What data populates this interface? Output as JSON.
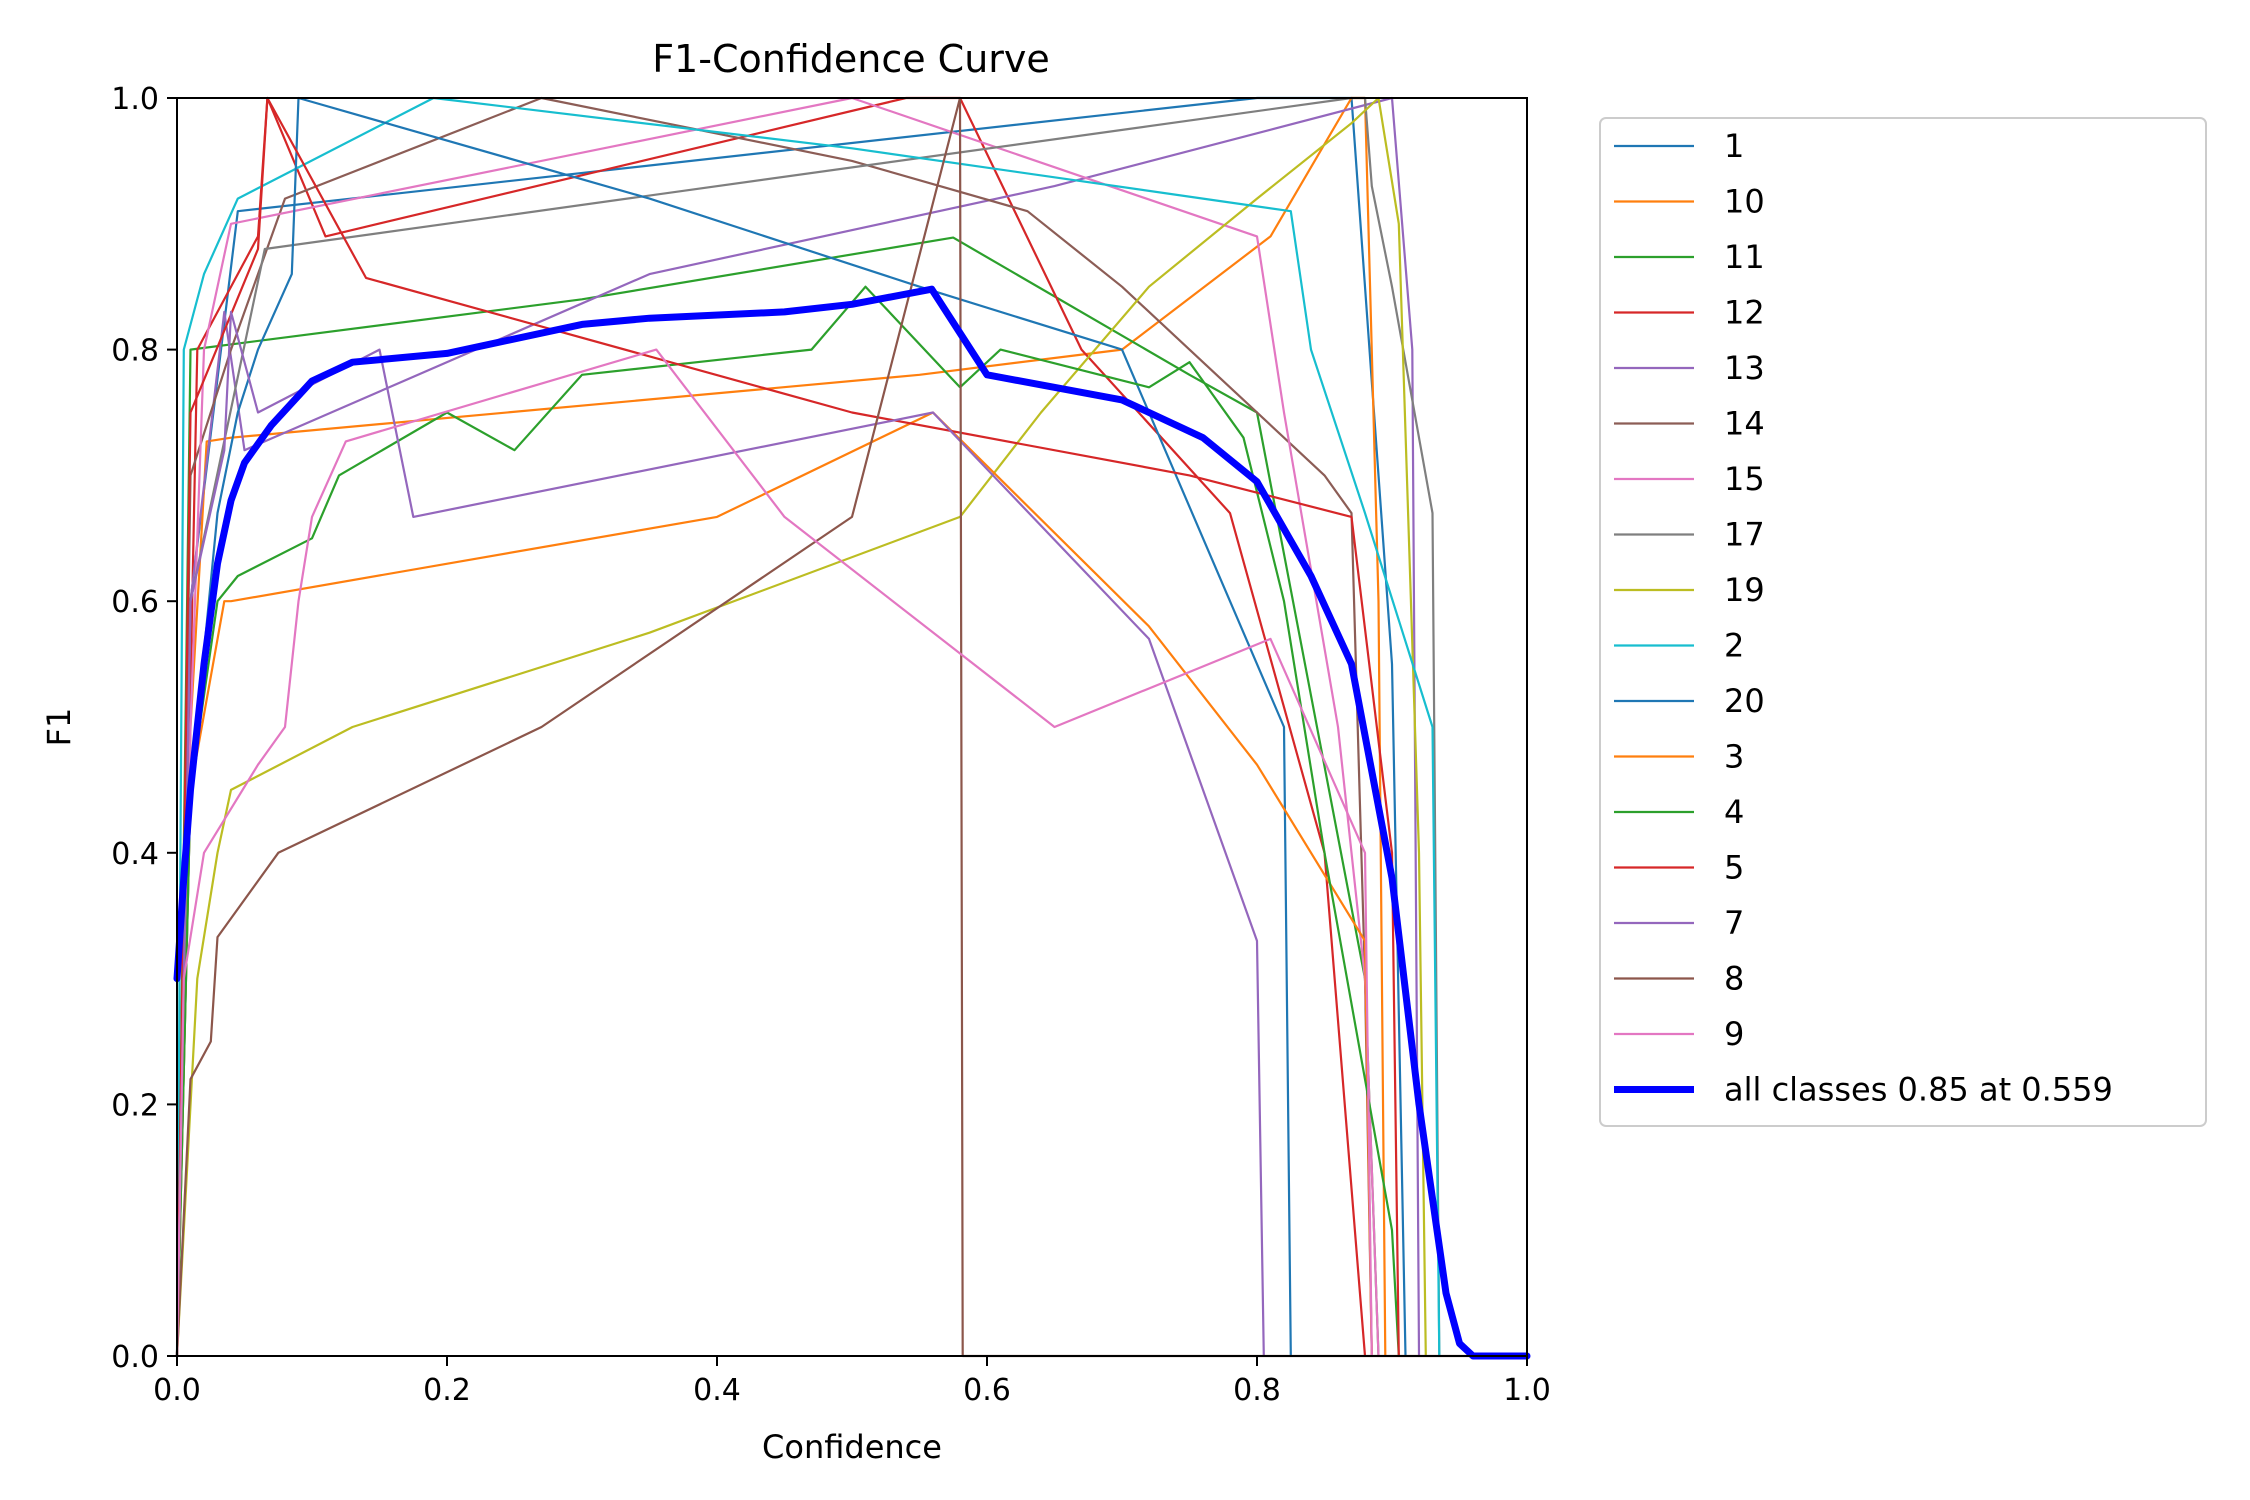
{
  "chart_data": {
    "type": "line",
    "title": "F1-Confidence Curve",
    "xlabel": "Confidence",
    "ylabel": "F1",
    "xlim": [
      0.0,
      1.0
    ],
    "ylim": [
      0.0,
      1.0
    ],
    "xticks": [
      "0.0",
      "0.2",
      "0.4",
      "0.6",
      "0.8",
      "1.0"
    ],
    "yticks": [
      "0.0",
      "0.2",
      "0.4",
      "0.6",
      "0.8",
      "1.0"
    ],
    "grid": false,
    "legend_position": "outside-right",
    "series": [
      {
        "name": "1",
        "color": "#1f77b4",
        "points": [
          [
            0.0,
            0.0
          ],
          [
            0.01,
            0.6
          ],
          [
            0.045,
            0.91
          ],
          [
            0.8,
            1.0
          ],
          [
            0.87,
            1.0
          ],
          [
            0.9,
            0.55
          ],
          [
            0.91,
            0.0
          ]
        ]
      },
      {
        "name": "10",
        "color": "#ff7f0e",
        "points": [
          [
            0.0,
            0.0
          ],
          [
            0.01,
            0.5
          ],
          [
            0.022,
            0.727
          ],
          [
            0.04,
            0.73
          ],
          [
            0.55,
            0.78
          ],
          [
            0.7,
            0.8
          ],
          [
            0.81,
            0.89
          ],
          [
            0.87,
            1.0
          ],
          [
            0.88,
            1.0
          ],
          [
            0.89,
            0.6
          ],
          [
            0.895,
            0.0
          ]
        ]
      },
      {
        "name": "11",
        "color": "#2ca02c",
        "points": [
          [
            0.0,
            0.0
          ],
          [
            0.01,
            0.8
          ],
          [
            0.3,
            0.84
          ],
          [
            0.575,
            0.889
          ],
          [
            0.75,
            0.78
          ],
          [
            0.8,
            0.75
          ],
          [
            0.88,
            0.3
          ],
          [
            0.89,
            0.0
          ]
        ]
      },
      {
        "name": "12",
        "color": "#d62728",
        "points": [
          [
            0.0,
            0.0
          ],
          [
            0.015,
            0.8
          ],
          [
            0.06,
            0.89
          ],
          [
            0.067,
            1.0
          ],
          [
            0.11,
            0.89
          ],
          [
            0.54,
            1.0
          ],
          [
            0.58,
            1.0
          ],
          [
            0.67,
            0.8
          ],
          [
            0.78,
            0.67
          ],
          [
            0.85,
            0.4
          ],
          [
            0.88,
            0.0
          ]
        ]
      },
      {
        "name": "13",
        "color": "#9467bd",
        "points": [
          [
            0.0,
            0.0
          ],
          [
            0.01,
            0.6
          ],
          [
            0.035,
            0.83
          ],
          [
            0.05,
            0.72
          ],
          [
            0.35,
            0.86
          ],
          [
            0.65,
            0.93
          ],
          [
            0.9,
            1.0
          ],
          [
            0.915,
            0.8
          ],
          [
            0.92,
            0.0
          ]
        ]
      },
      {
        "name": "14",
        "color": "#8c5d56",
        "points": [
          [
            0.0,
            0.0
          ],
          [
            0.01,
            0.7
          ],
          [
            0.04,
            0.8
          ],
          [
            0.08,
            0.92
          ],
          [
            0.27,
            1.0
          ],
          [
            0.5,
            0.95
          ],
          [
            0.63,
            0.91
          ],
          [
            0.7,
            0.85
          ],
          [
            0.85,
            0.7
          ],
          [
            0.87,
            0.67
          ],
          [
            0.88,
            0.3
          ],
          [
            0.885,
            0.0
          ]
        ]
      },
      {
        "name": "15",
        "color": "#e377c2",
        "points": [
          [
            0.0,
            0.0
          ],
          [
            0.01,
            0.5
          ],
          [
            0.02,
            0.8
          ],
          [
            0.04,
            0.9
          ],
          [
            0.5,
            1.0
          ],
          [
            0.8,
            0.89
          ],
          [
            0.82,
            0.75
          ],
          [
            0.86,
            0.5
          ],
          [
            0.88,
            0.3
          ],
          [
            0.89,
            0.0
          ]
        ]
      },
      {
        "name": "17",
        "color": "#7f7f7f",
        "points": [
          [
            0.0,
            0.0
          ],
          [
            0.01,
            0.6
          ],
          [
            0.065,
            0.88
          ],
          [
            0.87,
            1.0
          ],
          [
            0.88,
            1.0
          ],
          [
            0.885,
            0.93
          ],
          [
            0.9,
            0.85
          ],
          [
            0.93,
            0.67
          ],
          [
            0.935,
            0.0
          ]
        ]
      },
      {
        "name": "19",
        "color": "#bcbd22",
        "points": [
          [
            0.0,
            0.0
          ],
          [
            0.005,
            0.1
          ],
          [
            0.015,
            0.3
          ],
          [
            0.03,
            0.4
          ],
          [
            0.04,
            0.45
          ],
          [
            0.13,
            0.5
          ],
          [
            0.35,
            0.575
          ],
          [
            0.58,
            0.667
          ],
          [
            0.64,
            0.75
          ],
          [
            0.72,
            0.85
          ],
          [
            0.8,
            0.92
          ],
          [
            0.87,
            0.98
          ],
          [
            0.89,
            1.0
          ],
          [
            0.905,
            0.9
          ],
          [
            0.92,
            0.4
          ],
          [
            0.925,
            0.0
          ]
        ]
      },
      {
        "name": "2",
        "color": "#17becf",
        "points": [
          [
            0.0,
            0.0
          ],
          [
            0.005,
            0.8
          ],
          [
            0.02,
            0.86
          ],
          [
            0.045,
            0.92
          ],
          [
            0.19,
            1.0
          ],
          [
            0.5,
            0.96
          ],
          [
            0.76,
            0.92
          ],
          [
            0.825,
            0.91
          ],
          [
            0.84,
            0.8
          ],
          [
            0.88,
            0.67
          ],
          [
            0.93,
            0.5
          ],
          [
            0.935,
            0.0
          ]
        ]
      },
      {
        "name": "20",
        "color": "#1f77b4",
        "points": [
          [
            0.0,
            0.0
          ],
          [
            0.01,
            0.45
          ],
          [
            0.03,
            0.67
          ],
          [
            0.045,
            0.75
          ],
          [
            0.06,
            0.8
          ],
          [
            0.085,
            0.86
          ],
          [
            0.09,
            1.0
          ],
          [
            0.35,
            0.92
          ],
          [
            0.55,
            0.85
          ],
          [
            0.7,
            0.8
          ],
          [
            0.82,
            0.5
          ],
          [
            0.825,
            0.0
          ]
        ]
      },
      {
        "name": "3",
        "color": "#ff7f0e",
        "points": [
          [
            0.0,
            0.0
          ],
          [
            0.01,
            0.45
          ],
          [
            0.035,
            0.6
          ],
          [
            0.04,
            0.6
          ],
          [
            0.4,
            0.667
          ],
          [
            0.56,
            0.75
          ],
          [
            0.72,
            0.58
          ],
          [
            0.8,
            0.47
          ],
          [
            0.88,
            0.33
          ],
          [
            0.885,
            0.0
          ]
        ]
      },
      {
        "name": "4",
        "color": "#2ca02c",
        "points": [
          [
            0.0,
            0.0
          ],
          [
            0.01,
            0.45
          ],
          [
            0.03,
            0.6
          ],
          [
            0.045,
            0.62
          ],
          [
            0.1,
            0.65
          ],
          [
            0.12,
            0.7
          ],
          [
            0.2,
            0.75
          ],
          [
            0.25,
            0.72
          ],
          [
            0.3,
            0.78
          ],
          [
            0.47,
            0.8
          ],
          [
            0.51,
            0.85
          ],
          [
            0.58,
            0.77
          ],
          [
            0.61,
            0.8
          ],
          [
            0.72,
            0.77
          ],
          [
            0.75,
            0.79
          ],
          [
            0.79,
            0.73
          ],
          [
            0.82,
            0.6
          ],
          [
            0.85,
            0.4
          ],
          [
            0.9,
            0.1
          ],
          [
            0.905,
            0.0
          ]
        ]
      },
      {
        "name": "5",
        "color": "#d62728",
        "points": [
          [
            0.0,
            0.0
          ],
          [
            0.01,
            0.75
          ],
          [
            0.06,
            0.88
          ],
          [
            0.067,
            1.0
          ],
          [
            0.14,
            0.857
          ],
          [
            0.5,
            0.75
          ],
          [
            0.75,
            0.7
          ],
          [
            0.87,
            0.667
          ],
          [
            0.9,
            0.4
          ],
          [
            0.905,
            0.0
          ]
        ]
      },
      {
        "name": "7",
        "color": "#9467bd",
        "points": [
          [
            0.0,
            0.0
          ],
          [
            0.01,
            0.6
          ],
          [
            0.035,
            0.72
          ],
          [
            0.04,
            0.83
          ],
          [
            0.06,
            0.75
          ],
          [
            0.15,
            0.8
          ],
          [
            0.175,
            0.667
          ],
          [
            0.56,
            0.75
          ],
          [
            0.72,
            0.57
          ],
          [
            0.8,
            0.33
          ],
          [
            0.805,
            0.0
          ]
        ]
      },
      {
        "name": "8",
        "color": "#8c564b",
        "points": [
          [
            0.0,
            0.0
          ],
          [
            0.01,
            0.22
          ],
          [
            0.025,
            0.25
          ],
          [
            0.03,
            0.333
          ],
          [
            0.075,
            0.4
          ],
          [
            0.27,
            0.5
          ],
          [
            0.5,
            0.667
          ],
          [
            0.58,
            1.0
          ],
          [
            0.582,
            0.0
          ],
          [
            1.0,
            0.0
          ]
        ]
      },
      {
        "name": "9",
        "color": "#e377c2",
        "points": [
          [
            0.0,
            0.0
          ],
          [
            0.005,
            0.3
          ],
          [
            0.02,
            0.4
          ],
          [
            0.06,
            0.47
          ],
          [
            0.08,
            0.5
          ],
          [
            0.09,
            0.6
          ],
          [
            0.1,
            0.667
          ],
          [
            0.125,
            0.727
          ],
          [
            0.355,
            0.8
          ],
          [
            0.45,
            0.667
          ],
          [
            0.65,
            0.5
          ],
          [
            0.81,
            0.57
          ],
          [
            0.88,
            0.4
          ],
          [
            0.885,
            0.0
          ]
        ]
      }
    ],
    "aggregate": {
      "name": "all classes 0.85 at 0.559",
      "color": "#0000ff",
      "best_f1": 0.85,
      "best_confidence": 0.559,
      "points": [
        [
          0.0,
          0.3
        ],
        [
          0.005,
          0.38
        ],
        [
          0.01,
          0.45
        ],
        [
          0.02,
          0.55
        ],
        [
          0.03,
          0.63
        ],
        [
          0.04,
          0.68
        ],
        [
          0.05,
          0.71
        ],
        [
          0.07,
          0.74
        ],
        [
          0.1,
          0.775
        ],
        [
          0.13,
          0.79
        ],
        [
          0.2,
          0.797
        ],
        [
          0.3,
          0.82
        ],
        [
          0.35,
          0.825
        ],
        [
          0.45,
          0.83
        ],
        [
          0.5,
          0.836
        ],
        [
          0.559,
          0.848
        ],
        [
          0.6,
          0.78
        ],
        [
          0.7,
          0.76
        ],
        [
          0.76,
          0.73
        ],
        [
          0.8,
          0.695
        ],
        [
          0.84,
          0.62
        ],
        [
          0.87,
          0.55
        ],
        [
          0.9,
          0.38
        ],
        [
          0.92,
          0.2
        ],
        [
          0.94,
          0.05
        ],
        [
          0.95,
          0.01
        ],
        [
          0.96,
          0.0
        ],
        [
          1.0,
          0.0
        ]
      ]
    }
  }
}
